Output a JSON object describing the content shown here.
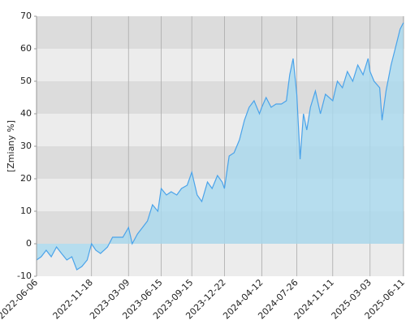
{
  "chart_data": {
    "type": "area",
    "y_label": "[Zmiany %]",
    "x": [
      "2022-06-06",
      "2022-06-20",
      "2022-07-05",
      "2022-07-20",
      "2022-08-05",
      "2022-08-20",
      "2022-09-05",
      "2022-09-20",
      "2022-10-05",
      "2022-10-20",
      "2022-11-05",
      "2022-11-18",
      "2022-12-01",
      "2022-12-15",
      "2023-01-05",
      "2023-01-20",
      "2023-02-05",
      "2023-02-20",
      "2023-03-09",
      "2023-03-20",
      "2023-04-05",
      "2023-04-20",
      "2023-05-05",
      "2023-05-20",
      "2023-06-05",
      "2023-06-15",
      "2023-07-01",
      "2023-07-15",
      "2023-08-01",
      "2023-08-15",
      "2023-09-01",
      "2023-09-15",
      "2023-10-01",
      "2023-10-15",
      "2023-11-01",
      "2023-11-15",
      "2023-12-01",
      "2023-12-15",
      "2023-12-22",
      "2024-01-05",
      "2024-01-20",
      "2024-02-05",
      "2024-02-20",
      "2024-03-05",
      "2024-03-20",
      "2024-04-05",
      "2024-04-12",
      "2024-04-25",
      "2024-05-10",
      "2024-05-25",
      "2024-06-10",
      "2024-06-25",
      "2024-07-05",
      "2024-07-15",
      "2024-07-26",
      "2024-08-05",
      "2024-08-15",
      "2024-08-25",
      "2024-09-05",
      "2024-09-20",
      "2024-10-05",
      "2024-10-20",
      "2024-11-11",
      "2024-11-25",
      "2024-12-10",
      "2024-12-25",
      "2025-01-10",
      "2025-01-25",
      "2025-02-10",
      "2025-02-25",
      "2025-03-03",
      "2025-03-15",
      "2025-04-01",
      "2025-04-08",
      "2025-04-20",
      "2025-05-05",
      "2025-05-20",
      "2025-06-01",
      "2025-06-11"
    ],
    "series": [
      {
        "color": "#4aa3ea",
        "fill": "#a9d9ef",
        "values": [
          -5,
          -4,
          -2,
          -4,
          -1,
          -3,
          -5,
          -4,
          -8,
          -7,
          -5,
          0,
          -2,
          -3,
          -1,
          2,
          2,
          2,
          5,
          0,
          3,
          5,
          7,
          12,
          10,
          17,
          15,
          16,
          15,
          17,
          18,
          22,
          15,
          13,
          19,
          17,
          21,
          19,
          17,
          27,
          28,
          32,
          38,
          42,
          44,
          40,
          42,
          45,
          42,
          43,
          43,
          44,
          52,
          57,
          46,
          26,
          40,
          35,
          42,
          47,
          40,
          46,
          44,
          50,
          48,
          53,
          50,
          55,
          52,
          57,
          53,
          50,
          48,
          38,
          47,
          55,
          61,
          66,
          68
        ]
      }
    ],
    "xlim": [
      "2022-06-06",
      "2025-06-14"
    ],
    "xticks": [
      "2022-06-06",
      "2022-11-18",
      "2023-03-09",
      "2023-06-15",
      "2023-09-15",
      "2023-12-22",
      "2024-04-12",
      "2024-07-26",
      "2024-11-11",
      "2025-03-03",
      "2025-06-11"
    ],
    "ylim": [
      -10,
      70
    ],
    "yticks": [
      -10,
      0,
      10,
      20,
      30,
      40,
      50,
      60,
      70
    ],
    "band_colors": [
      "#ececec",
      "#dcdcdc"
    ],
    "grid": true
  }
}
